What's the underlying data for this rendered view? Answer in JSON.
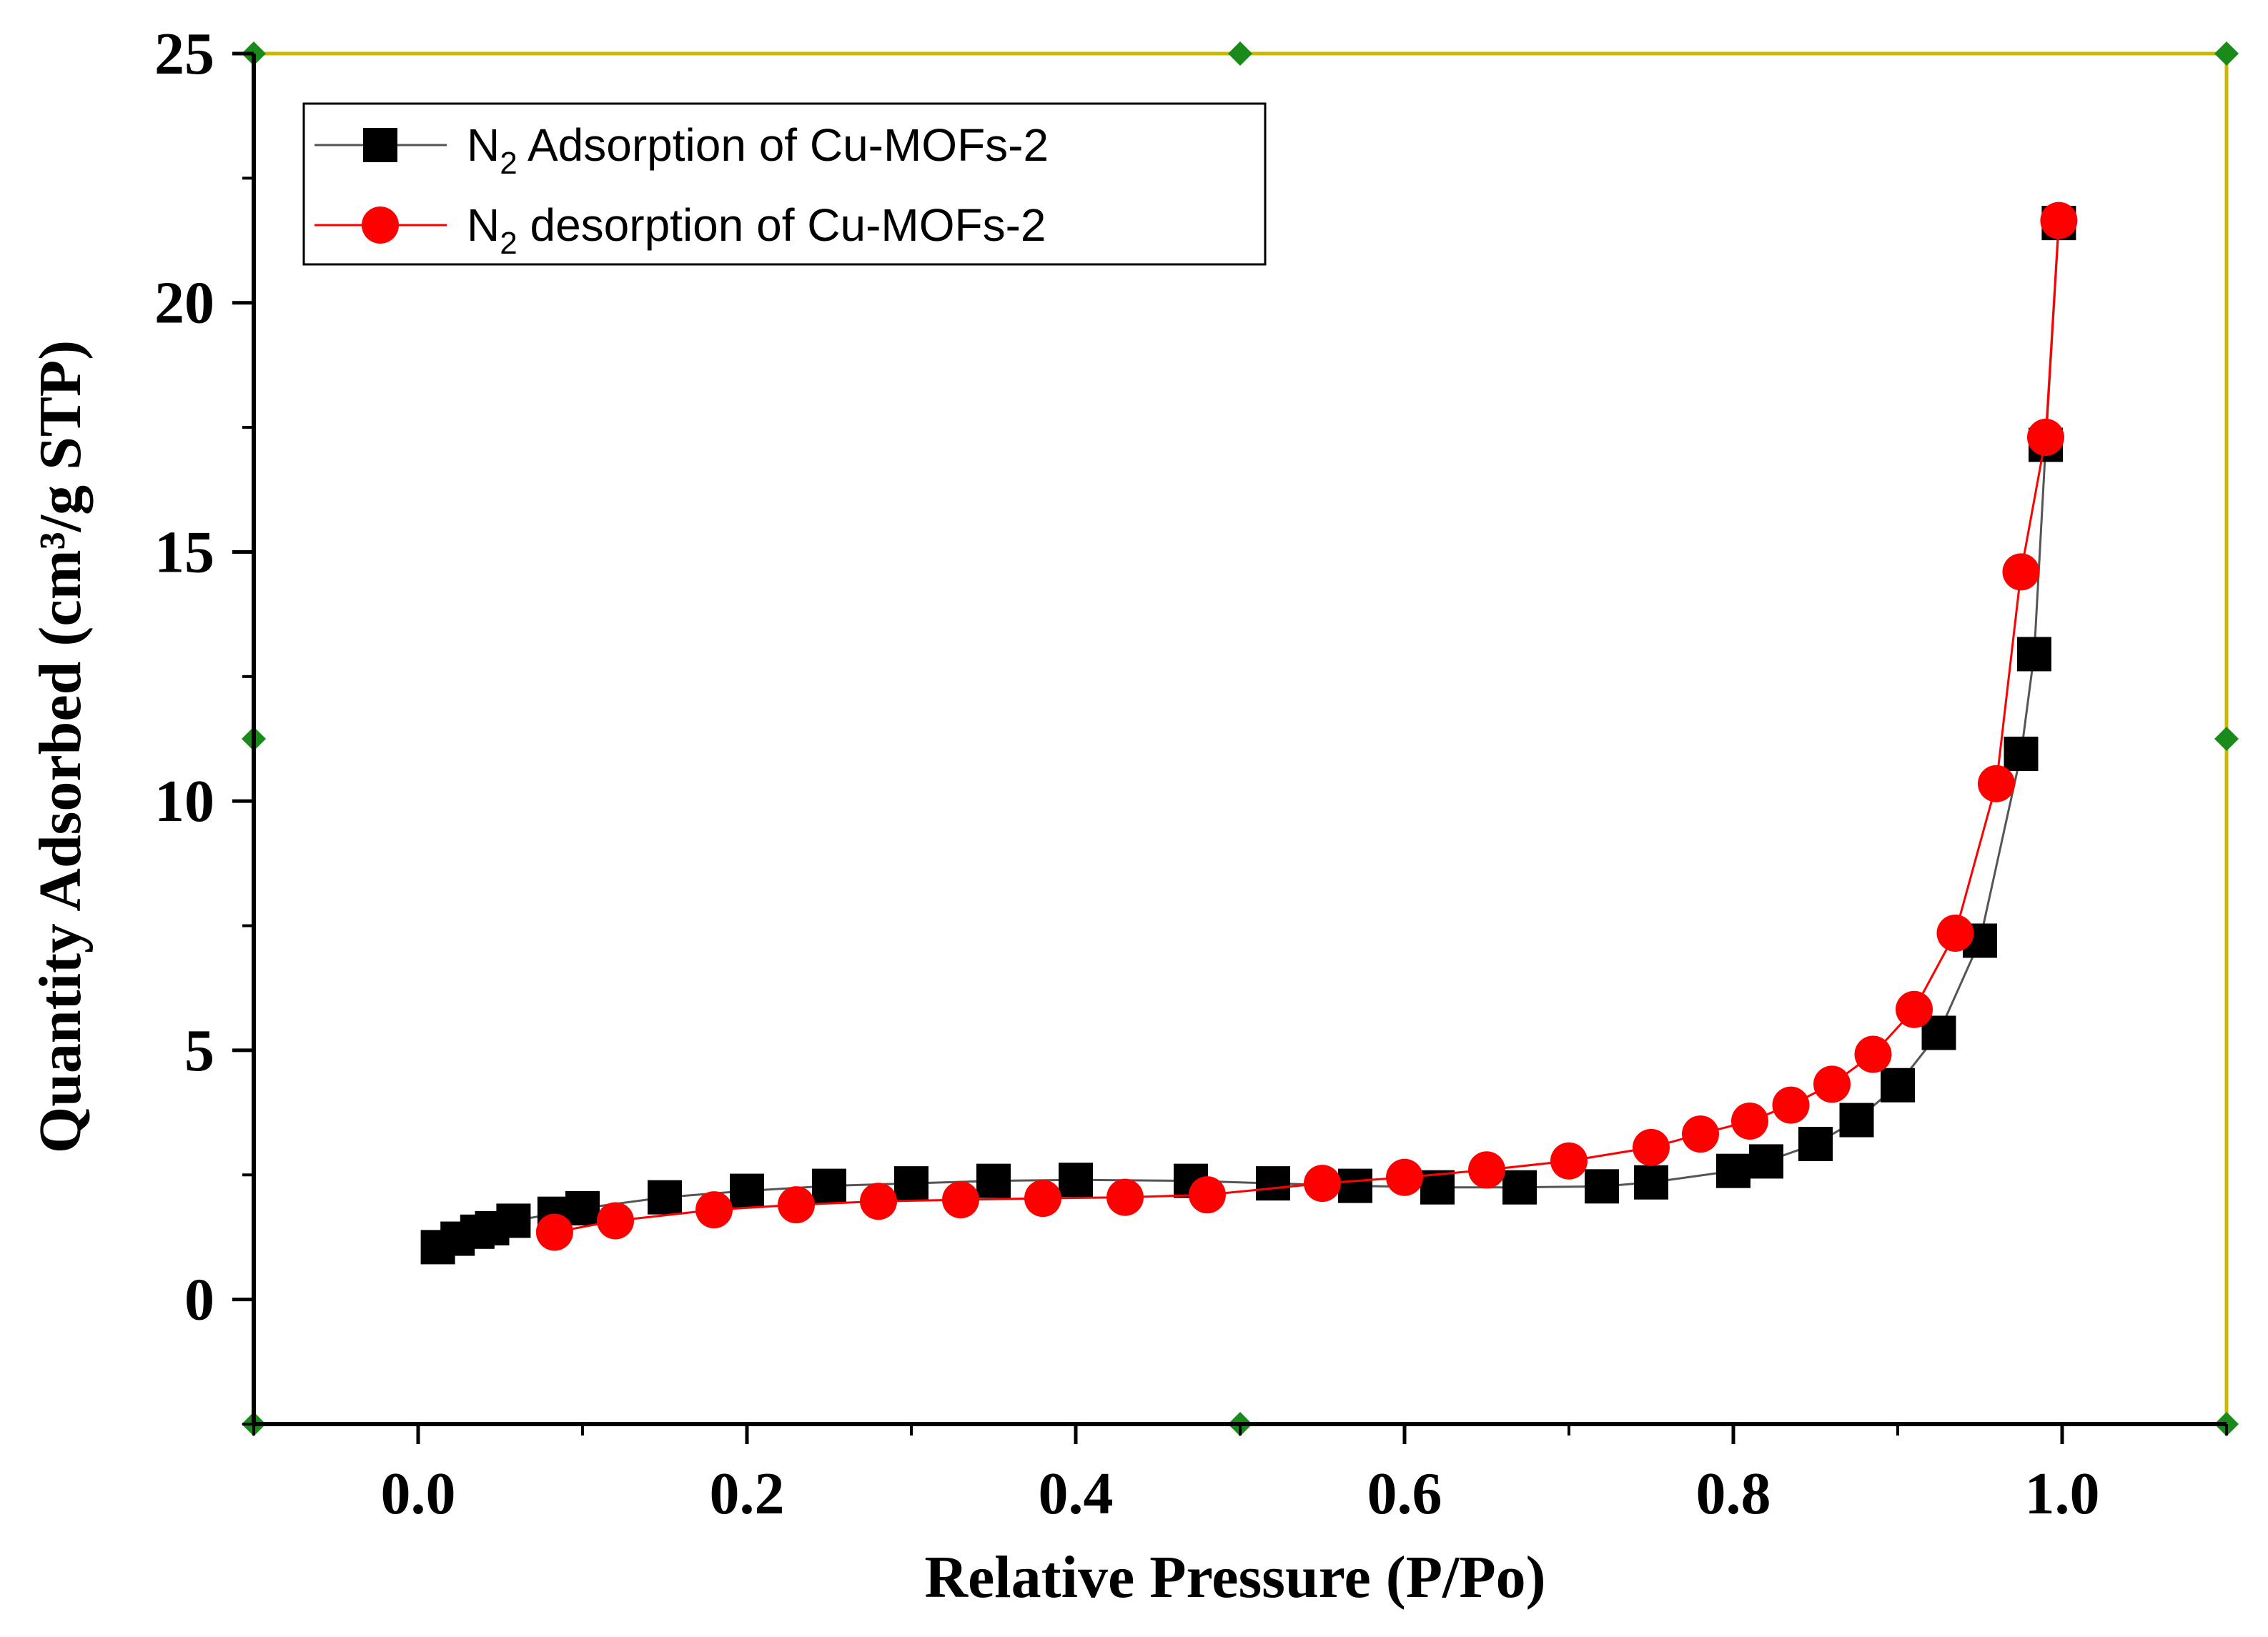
{
  "chart_data": {
    "type": "scatter",
    "title": "",
    "xlabel": "Relative Pressure (P/Po)",
    "ylabel": "Quantity Adsorbed (cm³/g STP)",
    "xlim": [
      -0.1,
      1.1
    ],
    "ylim": [
      -2.5,
      25
    ],
    "x_ticks": [
      0.0,
      0.2,
      0.4,
      0.6,
      0.8,
      1.0
    ],
    "x_tick_labels": [
      "0.0",
      "0.2",
      "0.4",
      "0.6",
      "0.8",
      "1.0"
    ],
    "y_ticks": [
      0,
      5,
      10,
      15,
      20,
      25
    ],
    "y_tick_labels": [
      "0",
      "5",
      "10",
      "15",
      "20",
      "25"
    ],
    "grid": false,
    "legend_position": "top-left",
    "frame_color": "#cbb900",
    "series": [
      {
        "name": "N2 Adsorption of Cu-MOFs-2",
        "legend_main": "N",
        "legend_sub": "2",
        "legend_rest": " Adsorption of Cu-MOFs-2",
        "color": "#000000",
        "line_color": "#555555",
        "marker": "square",
        "x": [
          0.012,
          0.024,
          0.036,
          0.045,
          0.058,
          0.083,
          0.1,
          0.15,
          0.2,
          0.25,
          0.3,
          0.35,
          0.4,
          0.47,
          0.52,
          0.57,
          0.62,
          0.67,
          0.72,
          0.75,
          0.8,
          0.82,
          0.85,
          0.875,
          0.9,
          0.925,
          0.95,
          0.975,
          0.983,
          0.99,
          0.998
        ],
        "y": [
          1.05,
          1.22,
          1.36,
          1.43,
          1.58,
          1.72,
          1.83,
          2.05,
          2.18,
          2.28,
          2.33,
          2.38,
          2.4,
          2.38,
          2.33,
          2.28,
          2.25,
          2.25,
          2.27,
          2.35,
          2.58,
          2.77,
          3.12,
          3.6,
          4.3,
          5.35,
          7.2,
          10.95,
          12.95,
          17.15,
          21.6
        ]
      },
      {
        "name": "N2 desorption of Cu-MOFs-2",
        "legend_main": "N",
        "legend_sub": "2",
        "legend_rest": " desorption of Cu-MOFs-2",
        "color": "#ff0000",
        "line_color": "#ff0000",
        "marker": "circle",
        "x": [
          0.998,
          0.99,
          0.975,
          0.96,
          0.935,
          0.91,
          0.885,
          0.86,
          0.835,
          0.81,
          0.78,
          0.75,
          0.7,
          0.65,
          0.6,
          0.55,
          0.48,
          0.43,
          0.38,
          0.33,
          0.28,
          0.23,
          0.18,
          0.12,
          0.083
        ],
        "y": [
          21.65,
          17.3,
          14.6,
          10.35,
          7.35,
          5.82,
          4.92,
          4.32,
          3.9,
          3.58,
          3.32,
          3.05,
          2.78,
          2.6,
          2.45,
          2.33,
          2.1,
          2.05,
          2.03,
          2.0,
          1.97,
          1.9,
          1.8,
          1.58,
          1.35
        ]
      }
    ]
  }
}
